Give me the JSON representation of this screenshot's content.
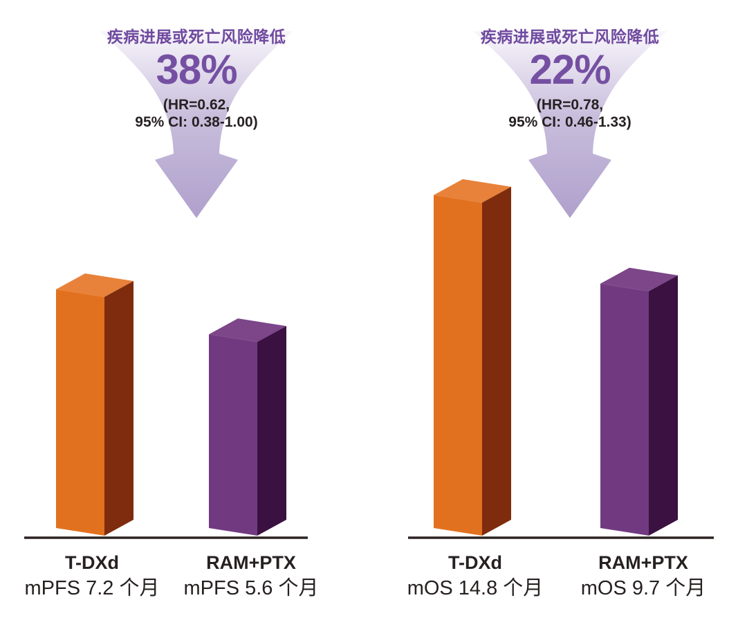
{
  "chart_data": {
    "type": "bar",
    "title": "",
    "unit": "个月",
    "groups": [
      "T-DXd",
      "RAM+PTX"
    ],
    "legend_position": "none",
    "grid": false,
    "panels": [
      {
        "metric": "mPFS",
        "annotation": {
          "label": "疾病进展或死亡风险降低",
          "percent": "38%",
          "hr": "(HR=0.62,",
          "ci": "95% CI: 0.38-1.00)"
        },
        "bars": [
          {
            "group": "T-DXd",
            "value": 7.2,
            "value_label": "mPFS 7.2 个月",
            "colors": {
              "front": "#E2711F",
              "top": "#E8823A",
              "side": "#7E2C0D"
            }
          },
          {
            "group": "RAM+PTX",
            "value": 5.6,
            "value_label": "mPFS 5.6 个月",
            "colors": {
              "front": "#713A80",
              "top": "#7C4689",
              "side": "#3A1141"
            }
          }
        ]
      },
      {
        "metric": "mOS",
        "annotation": {
          "label": "疾病进展或死亡风险降低",
          "percent": "22%",
          "hr": "(HR=0.78,",
          "ci": "95% CI: 0.46-1.33)"
        },
        "bars": [
          {
            "group": "T-DXd",
            "value": 14.8,
            "value_label": "mOS 14.8 个月",
            "colors": {
              "front": "#E2711F",
              "top": "#E8823A",
              "side": "#7E2C0D"
            }
          },
          {
            "group": "RAM+PTX",
            "value": 9.7,
            "value_label": "mOS 9.7 个月",
            "colors": {
              "front": "#713A80",
              "top": "#7C4689",
              "side": "#3A1141"
            }
          }
        ]
      }
    ],
    "colors": {
      "accent_purple_text": "#6F4A9F",
      "percent_text": "#7550A2",
      "hr_text": "#272123",
      "label_text": "#262120",
      "baseline": "#2B2422",
      "funnel_gradient_top": "#F8F6FB",
      "funnel_gradient_mid": "#C9BEDC",
      "funnel_gradient_bottom": "#AFA0CC"
    }
  }
}
